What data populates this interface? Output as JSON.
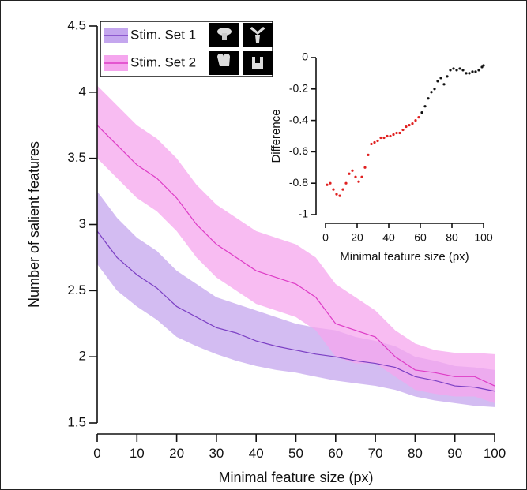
{
  "chart_data": [
    {
      "type": "line",
      "x_label": "Minimal feature size (px)",
      "y_label": "Number of salient features",
      "x": [
        0,
        5,
        10,
        15,
        20,
        25,
        30,
        35,
        40,
        45,
        50,
        55,
        60,
        65,
        70,
        75,
        80,
        85,
        90,
        95,
        100
      ],
      "xlim": [
        0,
        100
      ],
      "xticks": [
        0,
        10,
        20,
        30,
        40,
        50,
        60,
        70,
        80,
        90,
        100
      ],
      "ylim": [
        1.5,
        4.5
      ],
      "yticks": [
        1.5,
        2,
        2.5,
        3,
        3.5,
        4,
        4.5
      ],
      "legend": "top-left",
      "series": [
        {
          "name": "Stim. Set 1",
          "color": "#7b3fc4",
          "band_color": "#c4a6ee",
          "values": [
            2.95,
            2.75,
            2.62,
            2.52,
            2.38,
            2.3,
            2.22,
            2.18,
            2.12,
            2.08,
            2.05,
            2.02,
            2.0,
            1.97,
            1.95,
            1.92,
            1.85,
            1.82,
            1.78,
            1.77,
            1.74
          ],
          "upper": [
            3.25,
            3.05,
            2.9,
            2.8,
            2.65,
            2.55,
            2.45,
            2.4,
            2.35,
            2.3,
            2.25,
            2.22,
            2.2,
            2.15,
            2.12,
            2.08,
            2.0,
            1.97,
            1.93,
            1.92,
            1.9
          ],
          "lower": [
            2.7,
            2.5,
            2.38,
            2.28,
            2.15,
            2.08,
            2.02,
            1.97,
            1.93,
            1.9,
            1.88,
            1.85,
            1.82,
            1.8,
            1.78,
            1.75,
            1.7,
            1.67,
            1.65,
            1.63,
            1.62
          ]
        },
        {
          "name": "Stim. Set 2",
          "color": "#de3cc6",
          "band_color": "#f5a6ee",
          "values": [
            3.75,
            3.6,
            3.45,
            3.35,
            3.2,
            3.0,
            2.85,
            2.75,
            2.65,
            2.6,
            2.55,
            2.45,
            2.25,
            2.2,
            2.15,
            2.0,
            1.9,
            1.88,
            1.85,
            1.85,
            1.78
          ],
          "upper": [
            4.05,
            3.9,
            3.75,
            3.65,
            3.5,
            3.3,
            3.15,
            3.05,
            2.95,
            2.9,
            2.85,
            2.75,
            2.55,
            2.45,
            2.35,
            2.2,
            2.1,
            2.05,
            2.03,
            2.03,
            2.02
          ],
          "lower": [
            3.5,
            3.35,
            3.2,
            3.1,
            2.95,
            2.75,
            2.6,
            2.5,
            2.4,
            2.35,
            2.3,
            2.2,
            2.0,
            1.95,
            1.95,
            1.85,
            1.75,
            1.72,
            1.7,
            1.7,
            1.65
          ]
        }
      ]
    },
    {
      "type": "scatter",
      "x_label": "Minimal feature size (px)",
      "y_label": "Difference",
      "xlim": [
        0,
        100
      ],
      "xticks": [
        0,
        20,
        40,
        60,
        80,
        100
      ],
      "ylim": [
        -1,
        0
      ],
      "yticks": [
        -1,
        -0.8,
        -0.6,
        -0.4,
        -0.2,
        0
      ],
      "series": [
        {
          "color": "#e02020",
          "x": [
            1,
            3,
            5,
            7,
            9,
            11,
            13,
            15,
            17,
            19,
            21,
            23,
            25,
            27,
            29,
            31,
            33,
            35,
            37,
            39,
            41,
            43,
            45,
            47,
            49,
            51,
            53,
            55,
            57,
            59
          ],
          "values": [
            -0.81,
            -0.8,
            -0.84,
            -0.87,
            -0.88,
            -0.84,
            -0.8,
            -0.74,
            -0.72,
            -0.76,
            -0.79,
            -0.76,
            -0.7,
            -0.62,
            -0.55,
            -0.54,
            -0.53,
            -0.51,
            -0.51,
            -0.5,
            -0.5,
            -0.49,
            -0.48,
            -0.48,
            -0.46,
            -0.44,
            -0.43,
            -0.42,
            -0.4,
            -0.38
          ]
        },
        {
          "color": "#111111",
          "x": [
            61,
            63,
            65,
            67,
            69,
            71,
            73,
            75,
            77,
            79,
            81,
            83,
            85,
            87,
            89,
            91,
            93,
            95,
            97,
            99,
            100
          ],
          "values": [
            -0.35,
            -0.31,
            -0.26,
            -0.22,
            -0.2,
            -0.15,
            -0.13,
            -0.17,
            -0.12,
            -0.08,
            -0.07,
            -0.08,
            -0.07,
            -0.08,
            -0.1,
            -0.1,
            -0.09,
            -0.09,
            -0.08,
            -0.06,
            -0.05
          ]
        }
      ]
    }
  ]
}
